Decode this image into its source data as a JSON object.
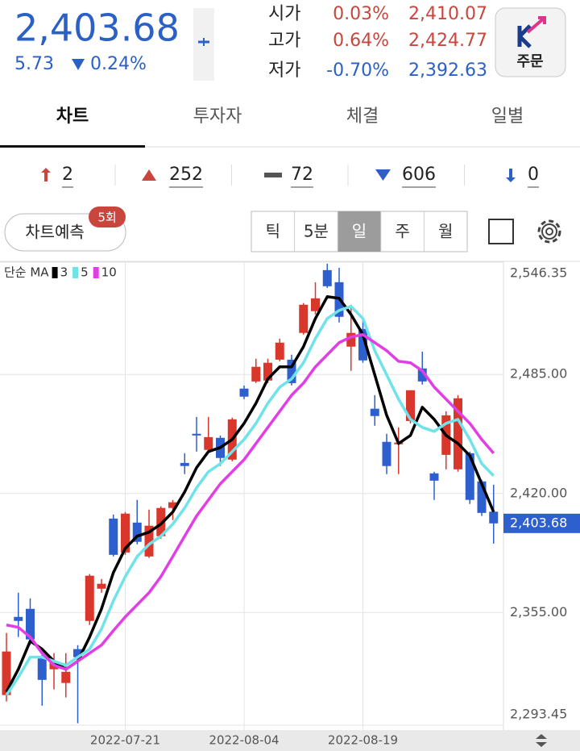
{
  "header": {
    "price": "2,403.68",
    "change": "5.73",
    "change_pct": "0.24%",
    "quotes": [
      {
        "label": "시가",
        "pct": "0.03%",
        "value": "2,410.07"
      },
      {
        "label": "고가",
        "pct": "0.64%",
        "value": "2,424.77"
      },
      {
        "label": "저가",
        "pct": "-0.70%",
        "value": "2,392.63"
      }
    ],
    "order_button": "주문"
  },
  "tabs": [
    "차트",
    "투자자",
    "체결",
    "일별"
  ],
  "counts": [
    "2",
    "252",
    "72",
    "606",
    "0"
  ],
  "controls": {
    "predict": "차트예측",
    "badge": "5회",
    "periods": [
      "틱",
      "5분",
      "일",
      "주",
      "월"
    ]
  },
  "chart_data": {
    "type": "candlestick",
    "legend_title": "단순 MA",
    "up_color": "#d9372c",
    "down_color": "#2d5fcf",
    "categories": [
      null,
      null,
      null,
      null,
      null,
      null,
      null,
      null,
      null,
      null,
      "2022-07-21",
      null,
      null,
      null,
      null,
      null,
      null,
      null,
      null,
      null,
      "2022-08-04",
      null,
      null,
      null,
      null,
      null,
      null,
      null,
      null,
      null,
      "2022-08-19",
      null,
      null,
      null,
      null,
      null,
      null,
      null,
      null,
      null,
      null,
      null
    ],
    "open": [
      2309.9,
      2352.6,
      2357.0,
      2330.6,
      2324.0,
      2316.5,
      2335.0,
      2350.4,
      2368.0,
      2406.3,
      2387.8,
      2404.1,
      2385.6,
      2396.7,
      2412.1,
      2436.7,
      2452.6,
      2443.8,
      2450.4,
      2438.5,
      2477.3,
      2481.2,
      2481.7,
      2493.1,
      2493.1,
      2507.7,
      2519.6,
      2542.0,
      2535.4,
      2500.2,
      2509.9,
      2466.3,
      2448.2,
      2446.9,
      2459.6,
      2488.3,
      2431.0,
      2441.1,
      2433.2,
      2442.0,
      2426.6,
      2410.07
    ],
    "high": [
      2343.8,
      2365.8,
      2362.7,
      2333.7,
      2332.8,
      2332.8,
      2337.2,
      2376.0,
      2373.3,
      2408.5,
      2409.9,
      2416.5,
      2411.2,
      2413.0,
      2416.5,
      2442.0,
      2461.8,
      2461.8,
      2451.7,
      2461.4,
      2479.0,
      2493.6,
      2493.6,
      2504.6,
      2495.8,
      2524.0,
      2535.4,
      2545.5,
      2543.3,
      2523.1,
      2515.6,
      2473.7,
      2452.6,
      2456.1,
      2476.4,
      2497.5,
      2431.9,
      2464.9,
      2473.7,
      2442.9,
      2427.5,
      2424.77
    ],
    "low": [
      2306.4,
      2341.6,
      2337.2,
      2304.1,
      2313.0,
      2308.6,
      2294.5,
      2348.2,
      2365.8,
      2385.6,
      2386.5,
      2392.2,
      2384.8,
      2395.3,
      2405.5,
      2430.6,
      2442.9,
      2442.9,
      2435.0,
      2437.6,
      2471.5,
      2480.3,
      2480.3,
      2492.2,
      2479.0,
      2506.8,
      2517.8,
      2532.3,
      2513.4,
      2487.0,
      2491.4,
      2457.0,
      2430.6,
      2430.6,
      2458.3,
      2479.5,
      2416.5,
      2433.2,
      2431.9,
      2414.3,
      2407.7,
      2392.63
    ],
    "close": [
      2333.7,
      2350.4,
      2340.3,
      2318.2,
      2328.4,
      2322.6,
      2330.6,
      2375.1,
      2370.7,
      2386.5,
      2409.0,
      2393.6,
      2402.4,
      2412.1,
      2415.2,
      2435.0,
      2451.7,
      2450.8,
      2439.4,
      2460.5,
      2472.9,
      2489.2,
      2491.4,
      2502.4,
      2480.3,
      2523.1,
      2526.6,
      2533.2,
      2516.5,
      2507.7,
      2492.7,
      2462.3,
      2435.0,
      2447.8,
      2476.4,
      2481.2,
      2427.0,
      2462.7,
      2472.0,
      2416.5,
      2409.4,
      2403.68
    ],
    "series": [
      {
        "name": "3",
        "color": "#000000",
        "values": [
          2311.6,
          2324.0,
          2339.4,
          2335.0,
          2328.4,
          2324.0,
          2328.4,
          2341.6,
          2357.0,
          2376.8,
          2390.0,
          2396.7,
          2398.9,
          2403.3,
          2409.9,
          2420.9,
          2434.1,
          2442.9,
          2445.1,
          2449.5,
          2458.3,
          2469.3,
          2482.6,
          2489.2,
          2489.2,
          2500.2,
          2515.6,
          2527.5,
          2526.6,
          2517.8,
          2506.8,
          2484.8,
          2462.7,
          2447.3,
          2451.7,
          2467.1,
          2460.5,
          2451.7,
          2447.3,
          2440.7,
          2425.3,
          2409.9
        ]
      },
      {
        "name": "5",
        "color": "#6fe3ea",
        "values": [
          2309.9,
          2319.6,
          2330.6,
          2330.6,
          2328.4,
          2326.2,
          2330.6,
          2335.0,
          2346.0,
          2361.4,
          2374.6,
          2385.6,
          2392.2,
          2396.7,
          2403.3,
          2412.1,
          2423.1,
          2431.9,
          2436.3,
          2442.9,
          2449.5,
          2458.3,
          2469.3,
          2478.1,
          2482.6,
          2491.4,
          2504.6,
          2515.6,
          2520.0,
          2522.2,
          2515.6,
          2498.0,
          2484.8,
          2471.5,
          2460.5,
          2456.1,
          2453.9,
          2458.3,
          2460.5,
          2449.5,
          2436.3,
          2429.7
        ]
      },
      {
        "name": "10",
        "color": "#e23ee6",
        "values": [
          2348.2,
          2346.9,
          2341.6,
          2332.8,
          2326.2,
          2324.0,
          2328.4,
          2332.8,
          2337.2,
          2345.1,
          2352.6,
          2359.2,
          2365.8,
          2374.6,
          2385.6,
          2396.7,
          2407.7,
          2416.5,
          2425.3,
          2431.9,
          2438.5,
          2447.3,
          2456.1,
          2464.9,
          2473.7,
          2480.3,
          2489.2,
          2495.8,
          2502.4,
          2505.5,
          2506.8,
          2502.4,
          2498.0,
          2492.2,
          2491.4,
          2487.0,
          2478.1,
          2471.5,
          2464.9,
          2458.3,
          2449.5,
          2442.0
        ]
      }
    ],
    "ylim": [
      2293.45,
      2546.35
    ],
    "yticks": [
      {
        "value": 2293.45,
        "label": "2,293.45"
      },
      {
        "value": 2355,
        "label": "2,355.00"
      },
      {
        "value": 2420,
        "label": "2,420.00"
      },
      {
        "value": 2485,
        "label": "2,485.00"
      },
      {
        "value": 2546.35,
        "label": "2,546.35"
      }
    ],
    "grid": true
  }
}
